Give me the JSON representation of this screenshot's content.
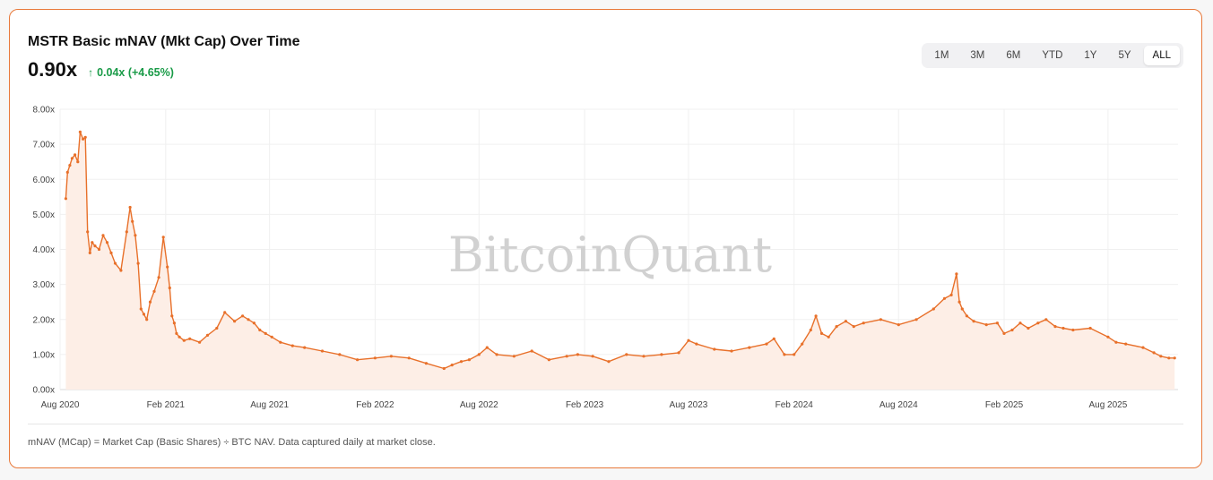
{
  "header": {
    "title": "MSTR Basic mNAV (Mkt Cap) Over Time",
    "value": "0.90x",
    "change": "0.04x (+4.65%)",
    "change_icon": "arrow-up-icon"
  },
  "ranges": [
    "1M",
    "3M",
    "6M",
    "YTD",
    "1Y",
    "5Y",
    "ALL"
  ],
  "active_range": "ALL",
  "watermark": "BitcoinQuant",
  "footnote": "mNAV (MCap) = Market Cap (Basic Shares) ÷ BTC NAV. Data captured daily at market close.",
  "colors": {
    "line": "#e8702a",
    "area": "#fdeee6",
    "accent_border": "#e8793a",
    "positive": "#1a9b48"
  },
  "chart_data": {
    "type": "area",
    "title": "MSTR Basic mNAV (Mkt Cap) Over Time",
    "xlabel": "",
    "ylabel": "",
    "ylim": [
      0,
      8
    ],
    "yticks": [
      "0.00x",
      "1.00x",
      "2.00x",
      "3.00x",
      "4.00x",
      "5.00x",
      "6.00x",
      "7.00x",
      "8.00x"
    ],
    "xticks": [
      "Aug 2020",
      "Feb 2021",
      "Aug 2021",
      "Feb 2022",
      "Aug 2022",
      "Feb 2023",
      "Aug 2023",
      "Feb 2024",
      "Aug 2024",
      "Feb 2025",
      "Aug 2025"
    ],
    "grid": true,
    "legend": "none",
    "series": [
      {
        "x": [
          "2020-08-11",
          "2020-08-14",
          "2020-08-18",
          "2020-08-22",
          "2020-08-27",
          "2020-09-01",
          "2020-09-05",
          "2020-09-10",
          "2020-09-14",
          "2020-09-18",
          "2020-09-22",
          "2020-09-26",
          "2020-10-01",
          "2020-10-08",
          "2020-10-15",
          "2020-10-22",
          "2020-10-29",
          "2020-11-05",
          "2020-11-15",
          "2020-11-25",
          "2020-12-01",
          "2020-12-05",
          "2020-12-10",
          "2020-12-15",
          "2020-12-20",
          "2020-12-25",
          "2020-12-30",
          "2021-01-05",
          "2021-01-12",
          "2021-01-20",
          "2021-01-28",
          "2021-02-04",
          "2021-02-08",
          "2021-02-12",
          "2021-02-16",
          "2021-02-20",
          "2021-02-25",
          "2021-03-05",
          "2021-03-15",
          "2021-04-01",
          "2021-04-15",
          "2021-05-01",
          "2021-05-15",
          "2021-06-01",
          "2021-06-15",
          "2021-06-25",
          "2021-07-05",
          "2021-07-15",
          "2021-07-25",
          "2021-08-05",
          "2021-08-20",
          "2021-09-10",
          "2021-10-01",
          "2021-11-01",
          "2021-12-01",
          "2022-01-01",
          "2022-02-01",
          "2022-03-01",
          "2022-04-01",
          "2022-05-01",
          "2022-06-01",
          "2022-06-15",
          "2022-07-01",
          "2022-07-15",
          "2022-08-01",
          "2022-08-15",
          "2022-09-01",
          "2022-10-01",
          "2022-11-01",
          "2022-12-01",
          "2023-01-01",
          "2023-01-20",
          "2023-02-15",
          "2023-03-15",
          "2023-04-15",
          "2023-05-15",
          "2023-06-15",
          "2023-07-15",
          "2023-08-01",
          "2023-08-15",
          "2023-09-15",
          "2023-10-15",
          "2023-11-15",
          "2023-12-15",
          "2023-12-28",
          "2024-01-15",
          "2024-02-01",
          "2024-02-15",
          "2024-03-01",
          "2024-03-10",
          "2024-03-20",
          "2024-04-01",
          "2024-04-15",
          "2024-05-01",
          "2024-05-15",
          "2024-06-01",
          "2024-07-01",
          "2024-08-01",
          "2024-09-01",
          "2024-10-01",
          "2024-10-20",
          "2024-11-01",
          "2024-11-10",
          "2024-11-15",
          "2024-11-20",
          "2024-11-28",
          "2024-12-10",
          "2025-01-01",
          "2025-01-20",
          "2025-02-01",
          "2025-02-15",
          "2025-03-01",
          "2025-03-15",
          "2025-04-01",
          "2025-04-15",
          "2025-05-01",
          "2025-05-15",
          "2025-06-01",
          "2025-07-01",
          "2025-08-01",
          "2025-08-15",
          "2025-09-01",
          "2025-10-01",
          "2025-10-20",
          "2025-11-01",
          "2025-11-15",
          "2025-11-25"
        ],
        "values": [
          5.45,
          6.2,
          6.4,
          6.6,
          6.7,
          6.5,
          7.35,
          7.15,
          7.2,
          4.5,
          3.9,
          4.2,
          4.1,
          4.0,
          4.4,
          4.2,
          3.9,
          3.6,
          3.4,
          4.5,
          5.2,
          4.8,
          4.4,
          3.6,
          2.3,
          2.15,
          2.0,
          2.5,
          2.8,
          3.2,
          4.35,
          3.5,
          2.9,
          2.1,
          1.9,
          1.6,
          1.5,
          1.4,
          1.45,
          1.35,
          1.55,
          1.75,
          2.2,
          1.95,
          2.1,
          2.0,
          1.9,
          1.7,
          1.6,
          1.5,
          1.35,
          1.25,
          1.2,
          1.1,
          1.0,
          0.85,
          0.9,
          0.95,
          0.9,
          0.75,
          0.6,
          0.7,
          0.8,
          0.85,
          1.0,
          1.2,
          1.0,
          0.95,
          1.1,
          0.85,
          0.95,
          1.0,
          0.95,
          0.8,
          1.0,
          0.95,
          1.0,
          1.05,
          1.4,
          1.3,
          1.15,
          1.1,
          1.2,
          1.3,
          1.45,
          1.0,
          1.0,
          1.3,
          1.7,
          2.1,
          1.6,
          1.5,
          1.8,
          1.95,
          1.8,
          1.9,
          2.0,
          1.85,
          2.0,
          2.3,
          2.6,
          2.7,
          3.3,
          2.5,
          2.3,
          2.1,
          1.95,
          1.85,
          1.9,
          1.6,
          1.7,
          1.9,
          1.75,
          1.9,
          2.0,
          1.8,
          1.75,
          1.7,
          1.75,
          1.5,
          1.35,
          1.3,
          1.2,
          1.05,
          0.95,
          0.9,
          0.9
        ]
      }
    ]
  }
}
